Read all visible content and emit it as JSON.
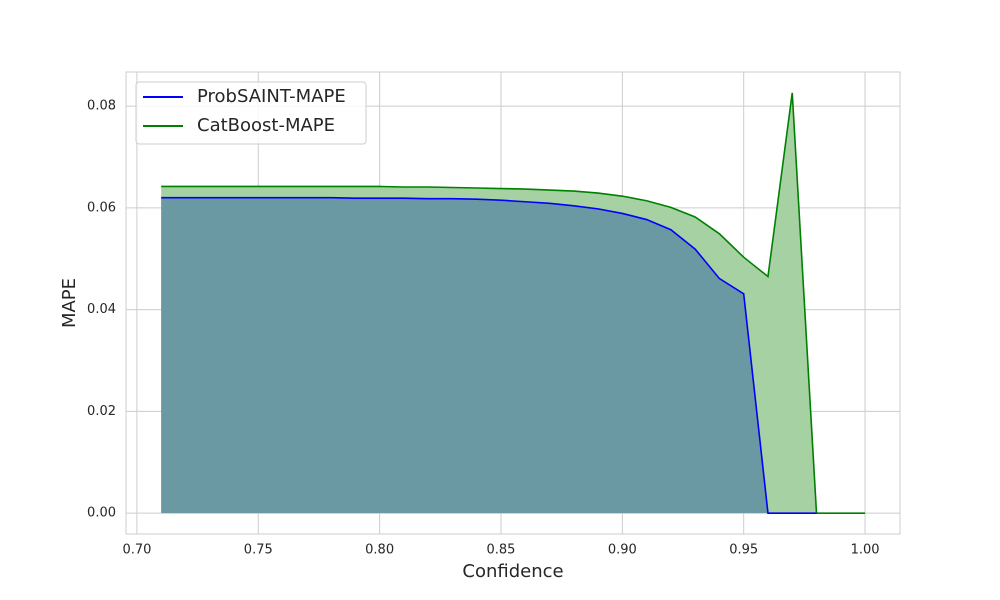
{
  "chart_data": {
    "type": "area",
    "xlabel": "Confidence",
    "ylabel": "MAPE",
    "x": [
      0.71,
      0.72,
      0.73,
      0.74,
      0.75,
      0.76,
      0.77,
      0.78,
      0.79,
      0.8,
      0.81,
      0.82,
      0.83,
      0.84,
      0.85,
      0.86,
      0.87,
      0.88,
      0.89,
      0.9,
      0.91,
      0.92,
      0.93,
      0.94,
      0.95,
      0.96,
      0.97,
      0.98,
      0.99,
      1.0
    ],
    "series": [
      {
        "name": "ProbSAINT-MAPE",
        "color": "#0000ff",
        "fill": "#6a98a3",
        "values": [
          0.062,
          0.062,
          0.062,
          0.062,
          0.062,
          0.062,
          0.062,
          0.062,
          0.0619,
          0.0619,
          0.0619,
          0.0618,
          0.0618,
          0.0617,
          0.0615,
          0.0612,
          0.0609,
          0.0604,
          0.0598,
          0.0589,
          0.0577,
          0.0557,
          0.0519,
          0.0461,
          0.0431,
          0,
          0,
          0,
          null,
          null
        ]
      },
      {
        "name": "CatBoost-MAPE",
        "color": "#008000",
        "fill": "#a5d1a3",
        "values": [
          0.0642,
          0.0642,
          0.0642,
          0.0642,
          0.0642,
          0.0642,
          0.0642,
          0.0642,
          0.0642,
          0.0642,
          0.0641,
          0.0641,
          0.064,
          0.0639,
          0.0638,
          0.0637,
          0.0635,
          0.0633,
          0.0629,
          0.0623,
          0.0614,
          0.0601,
          0.0582,
          0.0549,
          0.0503,
          0.0465,
          0.0826,
          0,
          0,
          0
        ]
      }
    ],
    "xlim": [
      0.6955,
      1.0144
    ],
    "xticks": [
      {
        "value": 0.7,
        "label": "0.70"
      },
      {
        "value": 0.75,
        "label": "0.75"
      },
      {
        "value": 0.8,
        "label": "0.80"
      },
      {
        "value": 0.85,
        "label": "0.85"
      },
      {
        "value": 0.9,
        "label": "0.90"
      },
      {
        "value": 0.95,
        "label": "0.95"
      },
      {
        "value": 1.0,
        "label": "1.00"
      }
    ],
    "ylim": [
      -0.0041,
      0.0867
    ],
    "yticks": [
      {
        "value": 0,
        "label": "0.00"
      },
      {
        "value": 0.02,
        "label": "0.02"
      },
      {
        "value": 0.04,
        "label": "0.04"
      },
      {
        "value": 0.06,
        "label": "0.06"
      },
      {
        "value": 0.08,
        "label": "0.08"
      }
    ],
    "grid": true,
    "legend": "upper-left"
  }
}
